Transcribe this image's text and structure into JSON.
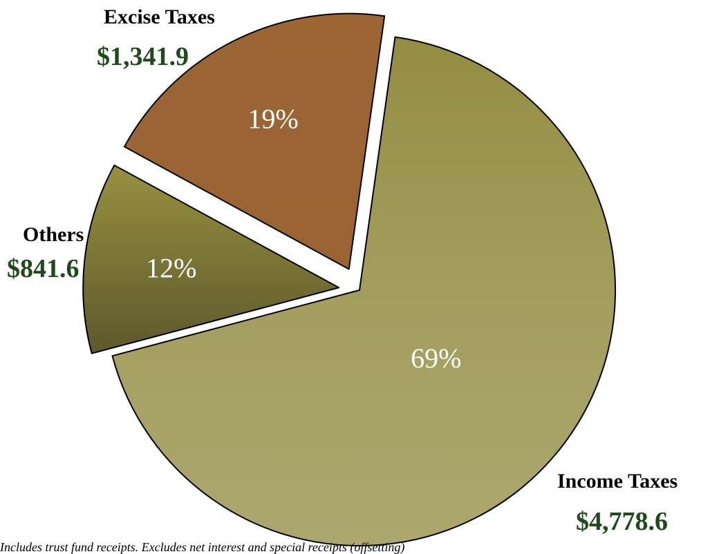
{
  "chart_data": {
    "type": "pie",
    "slices": [
      {
        "name": "Income Taxes",
        "value": 4778.6,
        "percent_label": "69%",
        "amount_label": "$4,778.6",
        "color": "#A9A46A"
      },
      {
        "name": "Others",
        "value": 841.6,
        "percent_label": "12%",
        "amount_label": "$841.6",
        "color": "#8B8A42"
      },
      {
        "name": "Excise Taxes",
        "value": 1341.9,
        "percent_label": "19%",
        "amount_label": "$1,341.9",
        "color": "#9A6534"
      }
    ],
    "exploded": true
  },
  "labels": {
    "excise_name": "Excise Taxes",
    "excise_amount": "$1,341.9",
    "others_name": "Others",
    "others_amount": "$841.6",
    "income_name": "Income Taxes",
    "income_amount": "$4,778.6"
  },
  "footnote": "Includes trust fund receipts. Excludes net interest and special receipts (offsetting)",
  "colors": {
    "amount_text": "#1F4A1A",
    "percent_text": "#FFFFFF",
    "slice_outline": "#000000"
  }
}
